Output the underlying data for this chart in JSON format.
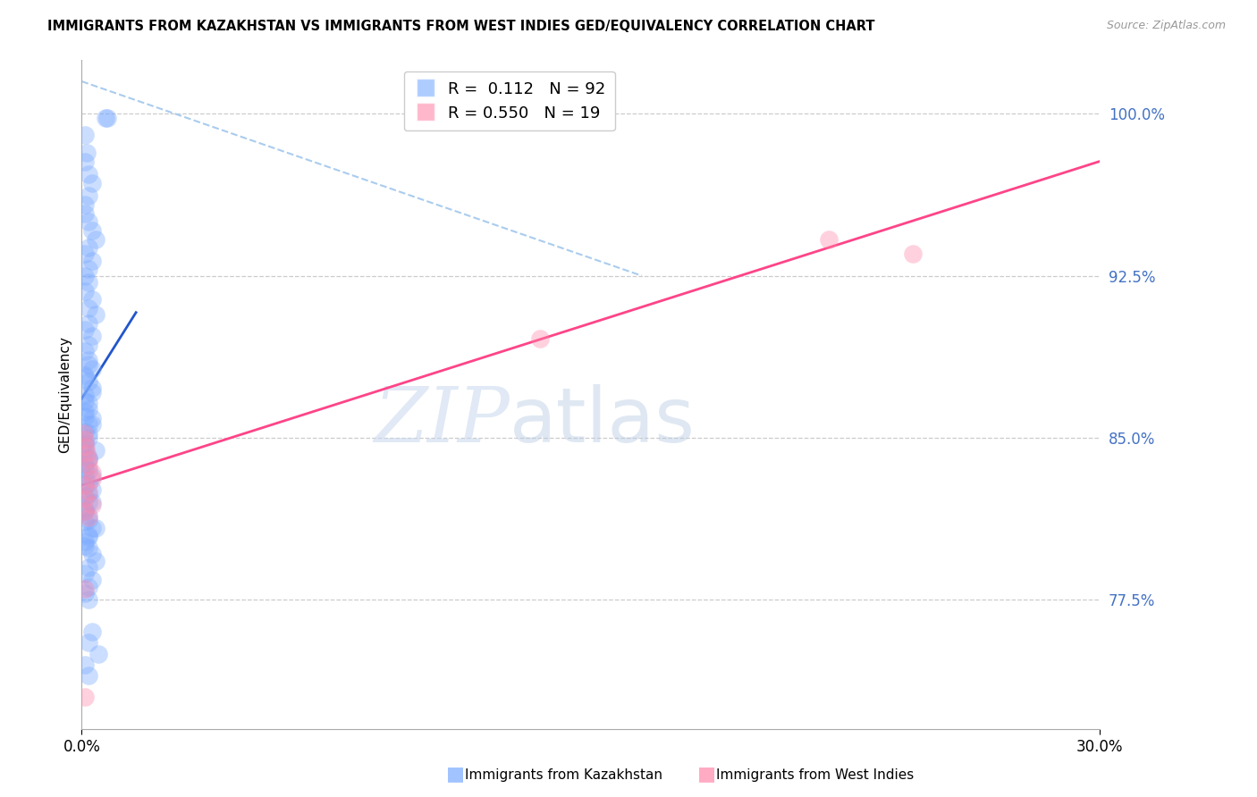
{
  "title": "IMMIGRANTS FROM KAZAKHSTAN VS IMMIGRANTS FROM WEST INDIES GED/EQUIVALENCY CORRELATION CHART",
  "source": "Source: ZipAtlas.com",
  "ylabel": "GED/Equivalency",
  "yticks": [
    0.775,
    0.85,
    0.925,
    1.0
  ],
  "ytick_labels": [
    "77.5%",
    "85.0%",
    "92.5%",
    "100.0%"
  ],
  "xmin": 0.0,
  "xmax": 0.3,
  "ymin": 0.715,
  "ymax": 1.025,
  "blue_R": 0.112,
  "blue_N": 92,
  "pink_R": 0.55,
  "pink_N": 19,
  "blue_color": "#7aaaff",
  "pink_color": "#ff88aa",
  "blue_line_color": "#2255cc",
  "pink_line_color": "#ff4488",
  "gray_dash_color": "#aaccee",
  "legend_label_blue": "Immigrants from Kazakhstan",
  "legend_label_pink": "Immigrants from West Indies",
  "blue_line_x": [
    0.0,
    0.016
  ],
  "blue_line_y": [
    0.868,
    0.908
  ],
  "pink_line_x": [
    0.0,
    0.3
  ],
  "pink_line_y": [
    0.828,
    0.978
  ],
  "gray_line_x": [
    0.0,
    0.165
  ],
  "gray_line_y": [
    1.015,
    0.925
  ],
  "blue_scatter_x": [
    0.007,
    0.0075,
    0.001,
    0.0015,
    0.001,
    0.002,
    0.003,
    0.002,
    0.001,
    0.001,
    0.002,
    0.003,
    0.004,
    0.002,
    0.001,
    0.003,
    0.002,
    0.001,
    0.002,
    0.001,
    0.003,
    0.002,
    0.004,
    0.002,
    0.001,
    0.003,
    0.002,
    0.001,
    0.002,
    0.003,
    0.001,
    0.002,
    0.003,
    0.001,
    0.002,
    0.001,
    0.003,
    0.002,
    0.001,
    0.002,
    0.001,
    0.001,
    0.002,
    0.001,
    0.002,
    0.001,
    0.002,
    0.003,
    0.001,
    0.002,
    0.001,
    0.002,
    0.001,
    0.003,
    0.002,
    0.001,
    0.002,
    0.003,
    0.004,
    0.002,
    0.001,
    0.003,
    0.002,
    0.001,
    0.002,
    0.001,
    0.002,
    0.003,
    0.001,
    0.002,
    0.001,
    0.003,
    0.002,
    0.001,
    0.004,
    0.002,
    0.001,
    0.003,
    0.001,
    0.002,
    0.003,
    0.001,
    0.002,
    0.004,
    0.002,
    0.001,
    0.003,
    0.002,
    0.005,
    0.001,
    0.002
  ],
  "blue_scatter_y": [
    0.998,
    0.998,
    0.99,
    0.982,
    0.978,
    0.972,
    0.968,
    0.962,
    0.958,
    0.954,
    0.95,
    0.946,
    0.942,
    0.938,
    0.935,
    0.932,
    0.928,
    0.925,
    0.922,
    0.918,
    0.914,
    0.91,
    0.907,
    0.903,
    0.9,
    0.897,
    0.893,
    0.89,
    0.886,
    0.882,
    0.879,
    0.876,
    0.873,
    0.87,
    0.866,
    0.862,
    0.859,
    0.856,
    0.853,
    0.85,
    0.847,
    0.844,
    0.841,
    0.838,
    0.835,
    0.832,
    0.829,
    0.826,
    0.823,
    0.82,
    0.817,
    0.814,
    0.811,
    0.808,
    0.805,
    0.802,
    0.799,
    0.796,
    0.793,
    0.79,
    0.787,
    0.784,
    0.781,
    0.778,
    0.775,
    0.878,
    0.884,
    0.871,
    0.867,
    0.863,
    0.86,
    0.856,
    0.852,
    0.848,
    0.844,
    0.84,
    0.836,
    0.832,
    0.828,
    0.824,
    0.82,
    0.816,
    0.812,
    0.808,
    0.804,
    0.8,
    0.76,
    0.755,
    0.75,
    0.745,
    0.74
  ],
  "pink_scatter_x": [
    0.0008,
    0.001,
    0.0012,
    0.0015,
    0.002,
    0.002,
    0.003,
    0.003,
    0.001,
    0.002,
    0.001,
    0.003,
    0.001,
    0.135,
    0.002,
    0.001,
    0.22,
    0.245,
    0.001
  ],
  "pink_scatter_y": [
    0.852,
    0.849,
    0.846,
    0.843,
    0.84,
    0.837,
    0.834,
    0.831,
    0.828,
    0.825,
    0.822,
    0.819,
    0.816,
    0.896,
    0.813,
    0.78,
    0.942,
    0.935,
    0.73
  ]
}
